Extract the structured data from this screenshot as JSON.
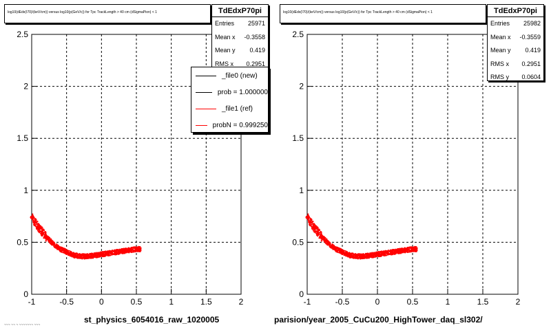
{
  "colors": {
    "ref": "#ff0000",
    "new": "#000000",
    "frame": "#000000"
  },
  "panels": [
    {
      "title": "log10(dEdx(I70)/(keV/cm)) versus log10(p(GeV/c)) for Tpc TrackLength > 40 cm (dSigmaPion) < 1",
      "stats": {
        "name": "TdEdxP70pi",
        "rows": [
          {
            "label": "Entries",
            "value": "25971"
          },
          {
            "label": "Mean x",
            "value": "-0.3558"
          },
          {
            "label": "Mean y",
            "value": "0.419"
          },
          {
            "label": "RMS x",
            "value": "0.2951"
          }
        ]
      },
      "bottom_label": "st_physics_6054016_raw_1020005",
      "corner_text": "~~~ ~~ ~ ~~~~~~~ ~~~"
    },
    {
      "title": "log10(dEdx(I70)/(keV/cm)) versus log10(p(GeV/c)) for Tpc TrackLength > 40 cm (dSigmaPion) < 1",
      "stats": {
        "name": "TdEdxP70pi",
        "rows": [
          {
            "label": "Entries",
            "value": "25982"
          },
          {
            "label": "Mean x",
            "value": "-0.3559"
          },
          {
            "label": "Mean y",
            "value": "0.419"
          },
          {
            "label": "RMS x",
            "value": "0.2951"
          },
          {
            "label": "RMS y",
            "value": "0.0604"
          }
        ]
      },
      "bottom_label": "parision/year_2005_CuCu200_HighTower_daq_sl302/"
    }
  ],
  "legend": [
    {
      "label": "_file0 (new)",
      "color": "#000000"
    },
    {
      "label": "prob = 1.000000",
      "color": "#000000"
    },
    {
      "label": "_file1 (ref)",
      "color": "#ff0000"
    },
    {
      "label": "probN = 0.999250",
      "color": "#ff0000"
    }
  ],
  "chart_data": [
    {
      "type": "scatter",
      "title": "log10(dEdx(I70)/(keV/cm)) versus log10(p(GeV/c)) for Tpc TrackLength > 40 cm (dSigmaPion) < 1",
      "xlabel": "",
      "ylabel": "",
      "xlim": [
        -1,
        2
      ],
      "ylim": [
        0,
        2.5
      ],
      "x_ticks": [
        -1,
        -0.5,
        0,
        0.5,
        1,
        1.5,
        2
      ],
      "x_tick_labels": [
        "-1",
        "-0.5",
        "0",
        "0.5",
        "1",
        "1.5",
        "2"
      ],
      "y_ticks": [
        0,
        0.5,
        1,
        1.5,
        2,
        2.5
      ],
      "y_tick_labels": [
        "0",
        "0.5",
        "1",
        "1.5",
        "2",
        "2.5"
      ],
      "grid": true,
      "series": [
        {
          "color": "#ff0000",
          "x": [
            -1.0,
            -0.9,
            -0.8,
            -0.7,
            -0.6,
            -0.5,
            -0.4,
            -0.3,
            -0.2,
            -0.1,
            0.0,
            0.1,
            0.2,
            0.3,
            0.4,
            0.5
          ],
          "y": [
            0.74,
            0.64,
            0.56,
            0.49,
            0.44,
            0.41,
            0.38,
            0.37,
            0.37,
            0.38,
            0.39,
            0.4,
            0.41,
            0.42,
            0.43,
            0.44
          ]
        }
      ]
    },
    {
      "type": "scatter",
      "title": "log10(dEdx(I70)/(keV/cm)) versus log10(p(GeV/c)) for Tpc TrackLength > 40 cm (dSigmaPion) < 1",
      "xlabel": "",
      "ylabel": "",
      "xlim": [
        -1,
        2
      ],
      "ylim": [
        0,
        2.5
      ],
      "x_ticks": [
        -1,
        -0.5,
        0,
        0.5,
        1,
        1.5,
        2
      ],
      "x_tick_labels": [
        "-1",
        "-0.5",
        "0",
        "0.5",
        "1",
        "1.5",
        "2"
      ],
      "y_ticks": [
        0,
        0.5,
        1,
        1.5,
        2,
        2.5
      ],
      "y_tick_labels": [
        "0",
        "0.5",
        "1",
        "1.5",
        "2",
        "2.5"
      ],
      "grid": true,
      "series": [
        {
          "color": "#ff0000",
          "x": [
            -1.0,
            -0.9,
            -0.8,
            -0.7,
            -0.6,
            -0.5,
            -0.4,
            -0.3,
            -0.2,
            -0.1,
            0.0,
            0.1,
            0.2,
            0.3,
            0.4,
            0.5
          ],
          "y": [
            0.74,
            0.64,
            0.56,
            0.49,
            0.44,
            0.41,
            0.38,
            0.37,
            0.37,
            0.38,
            0.39,
            0.4,
            0.41,
            0.42,
            0.43,
            0.44
          ]
        }
      ]
    }
  ]
}
